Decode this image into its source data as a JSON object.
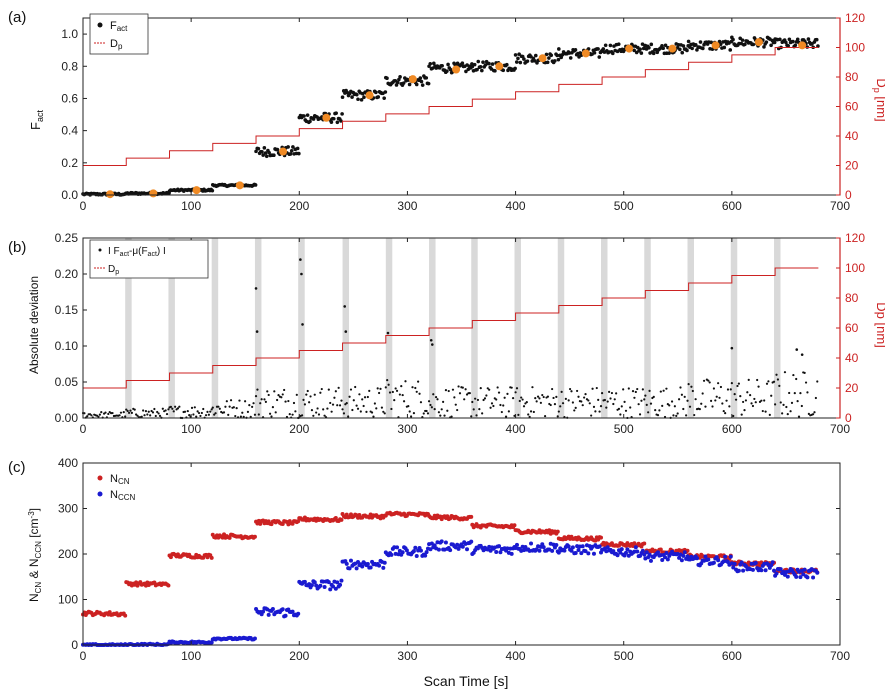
{
  "x_axis_label": "Scan Time [s]",
  "colors": {
    "black": "#111111",
    "orange": "#f08a24",
    "red": "#cc2222",
    "blue": "#1a1ad0",
    "shade": "#d9d9d9"
  },
  "chart_data": [
    {
      "panel": "(a)",
      "type": "scatter",
      "ylabel": "F",
      "ylabel_sub": "act",
      "ylabel_right": "D",
      "ylabel_right_sub": "p",
      "ylabel_right_tail": " [nm]",
      "xlim": [
        0,
        700
      ],
      "ylim": [
        0,
        1.1
      ],
      "ylim_right": [
        0,
        120
      ],
      "x_ticks": [
        0,
        100,
        200,
        300,
        400,
        500,
        600,
        700
      ],
      "y_ticks": [
        0.0,
        0.2,
        0.4,
        0.6,
        0.8,
        1.0
      ],
      "y_ticks_right": [
        0,
        20,
        40,
        60,
        80,
        100,
        120
      ],
      "legend": [
        {
          "symbol": "dot",
          "text": "F",
          "sub": "act"
        },
        {
          "symbol": "line",
          "text": "D",
          "sub": "p"
        }
      ],
      "legend_position": "top-left",
      "grid": false,
      "fact_plateaus": [
        {
          "x0": 0,
          "x1": 40,
          "y": 0.005
        },
        {
          "x0": 40,
          "x1": 80,
          "y": 0.01
        },
        {
          "x0": 80,
          "x1": 120,
          "y": 0.03
        },
        {
          "x0": 120,
          "x1": 160,
          "y": 0.06
        },
        {
          "x0": 160,
          "x1": 200,
          "y": 0.27
        },
        {
          "x0": 200,
          "x1": 240,
          "y": 0.48
        },
        {
          "x0": 240,
          "x1": 280,
          "y": 0.62
        },
        {
          "x0": 280,
          "x1": 320,
          "y": 0.71
        },
        {
          "x0": 320,
          "x1": 360,
          "y": 0.79
        },
        {
          "x0": 360,
          "x1": 400,
          "y": 0.8
        },
        {
          "x0": 400,
          "x1": 440,
          "y": 0.85
        },
        {
          "x0": 440,
          "x1": 480,
          "y": 0.88
        },
        {
          "x0": 480,
          "x1": 520,
          "y": 0.91
        },
        {
          "x0": 520,
          "x1": 560,
          "y": 0.91
        },
        {
          "x0": 560,
          "x1": 600,
          "y": 0.93
        },
        {
          "x0": 600,
          "x1": 640,
          "y": 0.95
        },
        {
          "x0": 640,
          "x1": 680,
          "y": 0.94
        }
      ],
      "fact_noise_pct": 0.025,
      "mean_points": [
        {
          "x": 25,
          "y": 0.005
        },
        {
          "x": 65,
          "y": 0.01
        },
        {
          "x": 105,
          "y": 0.03
        },
        {
          "x": 145,
          "y": 0.06
        },
        {
          "x": 185,
          "y": 0.27
        },
        {
          "x": 225,
          "y": 0.48
        },
        {
          "x": 265,
          "y": 0.62
        },
        {
          "x": 305,
          "y": 0.72
        },
        {
          "x": 345,
          "y": 0.78
        },
        {
          "x": 385,
          "y": 0.8
        },
        {
          "x": 425,
          "y": 0.85
        },
        {
          "x": 465,
          "y": 0.88
        },
        {
          "x": 505,
          "y": 0.91
        },
        {
          "x": 545,
          "y": 0.91
        },
        {
          "x": 585,
          "y": 0.93
        },
        {
          "x": 625,
          "y": 0.95
        },
        {
          "x": 665,
          "y": 0.93
        }
      ],
      "dp_steps": [
        {
          "x0": 0,
          "x1": 40,
          "y": 20
        },
        {
          "x0": 40,
          "x1": 80,
          "y": 25
        },
        {
          "x0": 80,
          "x1": 120,
          "y": 30
        },
        {
          "x0": 120,
          "x1": 160,
          "y": 35
        },
        {
          "x0": 160,
          "x1": 200,
          "y": 40
        },
        {
          "x0": 200,
          "x1": 240,
          "y": 45
        },
        {
          "x0": 240,
          "x1": 280,
          "y": 50
        },
        {
          "x0": 280,
          "x1": 320,
          "y": 55
        },
        {
          "x0": 320,
          "x1": 360,
          "y": 60
        },
        {
          "x0": 360,
          "x1": 400,
          "y": 65
        },
        {
          "x0": 400,
          "x1": 440,
          "y": 70
        },
        {
          "x0": 440,
          "x1": 480,
          "y": 75
        },
        {
          "x0": 480,
          "x1": 520,
          "y": 80
        },
        {
          "x0": 520,
          "x1": 560,
          "y": 85
        },
        {
          "x0": 560,
          "x1": 600,
          "y": 90
        },
        {
          "x0": 600,
          "x1": 640,
          "y": 95
        },
        {
          "x0": 640,
          "x1": 680,
          "y": 100
        }
      ]
    },
    {
      "panel": "(b)",
      "type": "scatter",
      "ylabel": "Absolute deviation",
      "ylabel_right": "Dp [nm]",
      "xlim": [
        0,
        700
      ],
      "ylim": [
        0,
        0.25
      ],
      "ylim_right": [
        0,
        120
      ],
      "x_ticks": [
        0,
        100,
        200,
        300,
        400,
        500,
        600,
        700
      ],
      "y_ticks": [
        0.0,
        0.05,
        0.1,
        0.15,
        0.2,
        0.25
      ],
      "y_ticks_right": [
        0,
        20,
        40,
        60,
        80,
        100,
        120
      ],
      "legend": [
        {
          "symbol": "dot",
          "text": "I F",
          "sub": "act",
          "tail": "-μ(F",
          "sub2": "act",
          "tail2": ") I"
        },
        {
          "symbol": "line",
          "text": "D",
          "sub": "p"
        }
      ],
      "legend_position": "top-left",
      "grid": false,
      "shaded_x": [
        42,
        82,
        122,
        162,
        202,
        243,
        283,
        323,
        362,
        402,
        442,
        482,
        522,
        562,
        602,
        642
      ],
      "deviation_levels": [
        0.004,
        0.006,
        0.008,
        0.012,
        0.02,
        0.02,
        0.02,
        0.025,
        0.02,
        0.02,
        0.02,
        0.02,
        0.02,
        0.02,
        0.025,
        0.025,
        0.03
      ],
      "spikes": [
        {
          "x": 160,
          "y": 0.18
        },
        {
          "x": 161,
          "y": 0.12
        },
        {
          "x": 201,
          "y": 0.22
        },
        {
          "x": 202,
          "y": 0.2
        },
        {
          "x": 203,
          "y": 0.13
        },
        {
          "x": 242,
          "y": 0.155
        },
        {
          "x": 243,
          "y": 0.12
        },
        {
          "x": 282,
          "y": 0.118
        },
        {
          "x": 322,
          "y": 0.108
        },
        {
          "x": 323,
          "y": 0.102
        },
        {
          "x": 600,
          "y": 0.097
        },
        {
          "x": 660,
          "y": 0.095
        },
        {
          "x": 665,
          "y": 0.088
        }
      ],
      "dp_steps": [
        {
          "x0": 0,
          "x1": 40,
          "y": 20
        },
        {
          "x0": 40,
          "x1": 80,
          "y": 25
        },
        {
          "x0": 80,
          "x1": 120,
          "y": 30
        },
        {
          "x0": 120,
          "x1": 160,
          "y": 35
        },
        {
          "x0": 160,
          "x1": 200,
          "y": 40
        },
        {
          "x0": 200,
          "x1": 240,
          "y": 45
        },
        {
          "x0": 240,
          "x1": 280,
          "y": 50
        },
        {
          "x0": 280,
          "x1": 320,
          "y": 55
        },
        {
          "x0": 320,
          "x1": 360,
          "y": 60
        },
        {
          "x0": 360,
          "x1": 400,
          "y": 65
        },
        {
          "x0": 400,
          "x1": 440,
          "y": 70
        },
        {
          "x0": 440,
          "x1": 480,
          "y": 75
        },
        {
          "x0": 480,
          "x1": 520,
          "y": 80
        },
        {
          "x0": 520,
          "x1": 560,
          "y": 85
        },
        {
          "x0": 560,
          "x1": 600,
          "y": 90
        },
        {
          "x0": 600,
          "x1": 640,
          "y": 95
        },
        {
          "x0": 640,
          "x1": 680,
          "y": 100
        }
      ]
    },
    {
      "panel": "(c)",
      "type": "scatter",
      "ylabel": "N",
      "ylabel_sub": "CN",
      "ylabel_mid": " & N",
      "ylabel_sub2": "CCN",
      "ylabel_tail": " [cm",
      "ylabel_sup": "-3",
      "ylabel_tail2": "]",
      "xlim": [
        0,
        700
      ],
      "ylim": [
        0,
        400
      ],
      "x_ticks": [
        0,
        100,
        200,
        300,
        400,
        500,
        600,
        700
      ],
      "y_ticks": [
        0,
        100,
        200,
        300,
        400
      ],
      "legend": [
        {
          "symbol": "red-dot",
          "text": "N",
          "sub": "CN"
        },
        {
          "symbol": "blue-dot",
          "text": "N",
          "sub": "CCN"
        }
      ],
      "legend_position": "top-left",
      "grid": false,
      "ncn_plateaus": [
        {
          "x0": 0,
          "x1": 40,
          "y": 70
        },
        {
          "x0": 40,
          "x1": 80,
          "y": 135
        },
        {
          "x0": 80,
          "x1": 120,
          "y": 197
        },
        {
          "x0": 120,
          "x1": 160,
          "y": 240
        },
        {
          "x0": 160,
          "x1": 200,
          "y": 270
        },
        {
          "x0": 200,
          "x1": 240,
          "y": 277
        },
        {
          "x0": 240,
          "x1": 280,
          "y": 284
        },
        {
          "x0": 280,
          "x1": 320,
          "y": 288
        },
        {
          "x0": 320,
          "x1": 360,
          "y": 281
        },
        {
          "x0": 360,
          "x1": 400,
          "y": 262
        },
        {
          "x0": 400,
          "x1": 440,
          "y": 250
        },
        {
          "x0": 440,
          "x1": 480,
          "y": 235
        },
        {
          "x0": 480,
          "x1": 520,
          "y": 222
        },
        {
          "x0": 520,
          "x1": 560,
          "y": 207
        },
        {
          "x0": 560,
          "x1": 600,
          "y": 195
        },
        {
          "x0": 600,
          "x1": 640,
          "y": 180
        },
        {
          "x0": 640,
          "x1": 680,
          "y": 164
        }
      ],
      "nccn_plateaus": [
        {
          "x0": 0,
          "x1": 40,
          "y": 0
        },
        {
          "x0": 40,
          "x1": 80,
          "y": 1
        },
        {
          "x0": 80,
          "x1": 120,
          "y": 6
        },
        {
          "x0": 120,
          "x1": 160,
          "y": 14
        },
        {
          "x0": 160,
          "x1": 200,
          "y": 72
        },
        {
          "x0": 200,
          "x1": 240,
          "y": 132
        },
        {
          "x0": 240,
          "x1": 280,
          "y": 178
        },
        {
          "x0": 280,
          "x1": 320,
          "y": 205
        },
        {
          "x0": 320,
          "x1": 360,
          "y": 218
        },
        {
          "x0": 360,
          "x1": 400,
          "y": 210
        },
        {
          "x0": 400,
          "x1": 440,
          "y": 215
        },
        {
          "x0": 440,
          "x1": 480,
          "y": 210
        },
        {
          "x0": 480,
          "x1": 520,
          "y": 205
        },
        {
          "x0": 520,
          "x1": 560,
          "y": 195
        },
        {
          "x0": 560,
          "x1": 600,
          "y": 185
        },
        {
          "x0": 600,
          "x1": 640,
          "y": 172
        },
        {
          "x0": 640,
          "x1": 680,
          "y": 158
        }
      ]
    }
  ]
}
